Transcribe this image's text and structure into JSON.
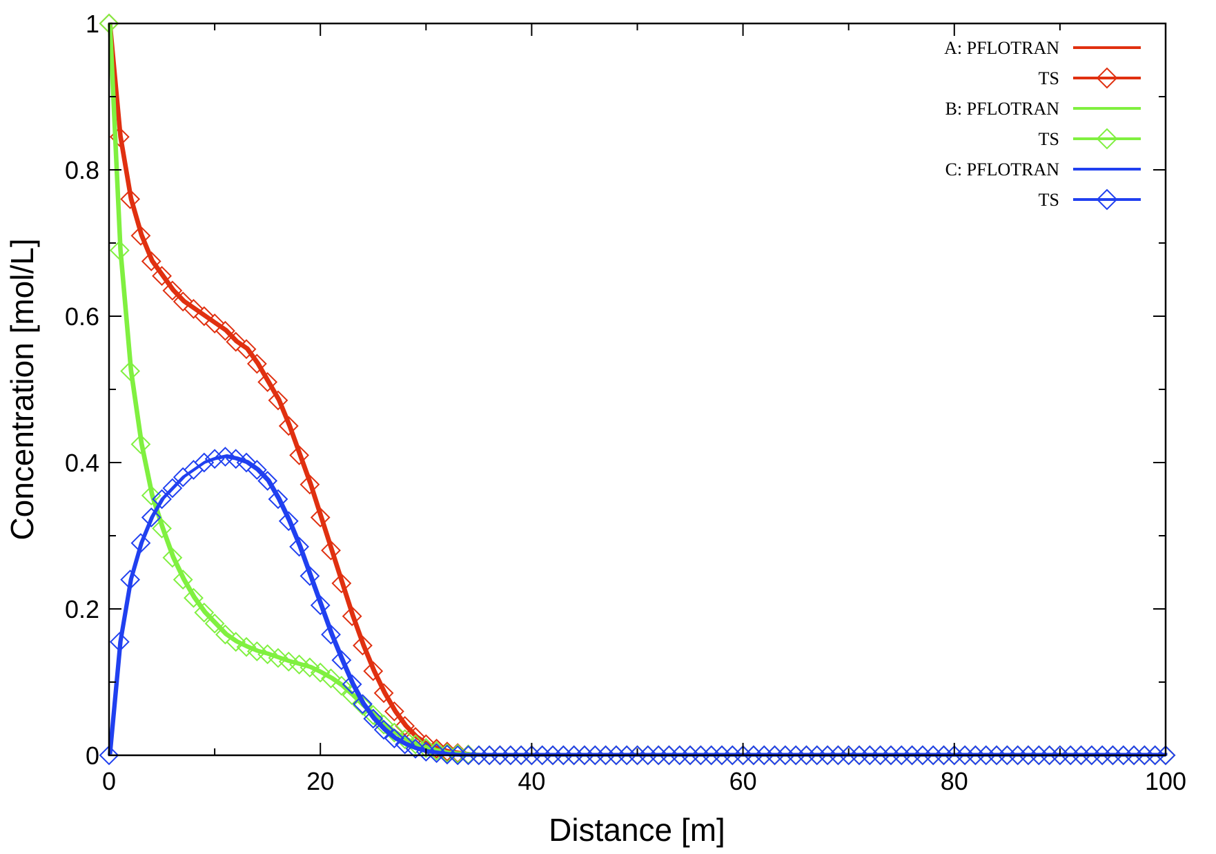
{
  "chart_data": {
    "type": "line",
    "title": "",
    "xlabel": "Distance [m]",
    "ylabel": "Concentration [mol/L]",
    "xlim": [
      0,
      100
    ],
    "ylim": [
      0,
      1
    ],
    "xticks": [
      0,
      20,
      40,
      60,
      80,
      100
    ],
    "xtick_labels": [
      "0",
      "20",
      "40",
      "60",
      "80",
      "100"
    ],
    "yticks": [
      0,
      0.2,
      0.4,
      0.6,
      0.8,
      1
    ],
    "ytick_labels": [
      "0",
      "0.2",
      "0.4",
      "0.6",
      "0.8",
      "1"
    ],
    "grid": false,
    "legend_position": "top-right",
    "x": [
      0,
      1,
      2,
      3,
      4,
      5,
      6,
      7,
      8,
      9,
      10,
      11,
      12,
      13,
      14,
      15,
      16,
      17,
      18,
      19,
      20,
      21,
      22,
      23,
      24,
      25,
      26,
      27,
      28,
      29,
      30,
      31,
      32,
      33,
      34,
      35
    ],
    "x_tail_end": 100,
    "series": [
      {
        "name": "A: PFLOTRAN",
        "color": "#e03010",
        "marker": "none",
        "values": [
          1,
          0.845,
          0.76,
          0.71,
          0.675,
          0.655,
          0.635,
          0.62,
          0.61,
          0.6,
          0.59,
          0.58,
          0.565,
          0.555,
          0.535,
          0.51,
          0.485,
          0.45,
          0.41,
          0.37,
          0.325,
          0.28,
          0.235,
          0.19,
          0.15,
          0.115,
          0.085,
          0.06,
          0.04,
          0.025,
          0.015,
          0.009,
          0.005,
          0.003,
          0.001,
          0
        ]
      },
      {
        "name": "TS",
        "color": "#e03010",
        "marker": "diamond",
        "values": [
          1,
          0.845,
          0.76,
          0.71,
          0.675,
          0.655,
          0.635,
          0.62,
          0.61,
          0.6,
          0.59,
          0.58,
          0.565,
          0.555,
          0.535,
          0.51,
          0.485,
          0.45,
          0.41,
          0.37,
          0.325,
          0.28,
          0.235,
          0.19,
          0.15,
          0.115,
          0.085,
          0.06,
          0.04,
          0.025,
          0.015,
          0.009,
          0.005,
          0.003,
          0.001,
          0
        ]
      },
      {
        "name": "B: PFLOTRAN",
        "color": "#80f040",
        "marker": "none",
        "values": [
          1,
          0.69,
          0.525,
          0.425,
          0.355,
          0.31,
          0.27,
          0.24,
          0.215,
          0.195,
          0.18,
          0.165,
          0.155,
          0.148,
          0.142,
          0.138,
          0.133,
          0.128,
          0.124,
          0.12,
          0.113,
          0.105,
          0.095,
          0.082,
          0.068,
          0.055,
          0.042,
          0.031,
          0.022,
          0.015,
          0.01,
          0.006,
          0.003,
          0.002,
          0.001,
          0
        ]
      },
      {
        "name": "TS",
        "color": "#80f040",
        "marker": "diamond",
        "values": [
          1,
          0.69,
          0.525,
          0.425,
          0.355,
          0.31,
          0.27,
          0.24,
          0.215,
          0.195,
          0.18,
          0.165,
          0.155,
          0.148,
          0.142,
          0.138,
          0.133,
          0.128,
          0.124,
          0.12,
          0.113,
          0.105,
          0.095,
          0.082,
          0.068,
          0.055,
          0.042,
          0.031,
          0.022,
          0.015,
          0.01,
          0.006,
          0.003,
          0.002,
          0.001,
          0
        ]
      },
      {
        "name": "C: PFLOTRAN",
        "color": "#2040f0",
        "marker": "none",
        "values": [
          0,
          0.155,
          0.24,
          0.29,
          0.325,
          0.35,
          0.365,
          0.38,
          0.39,
          0.4,
          0.405,
          0.408,
          0.405,
          0.4,
          0.39,
          0.375,
          0.35,
          0.32,
          0.285,
          0.245,
          0.205,
          0.165,
          0.13,
          0.097,
          0.07,
          0.05,
          0.035,
          0.023,
          0.015,
          0.009,
          0.005,
          0.003,
          0.001,
          0,
          0,
          0
        ]
      },
      {
        "name": "TS",
        "color": "#2040f0",
        "marker": "diamond",
        "values": [
          0,
          0.155,
          0.24,
          0.29,
          0.325,
          0.35,
          0.365,
          0.38,
          0.39,
          0.4,
          0.405,
          0.408,
          0.405,
          0.4,
          0.39,
          0.375,
          0.35,
          0.32,
          0.285,
          0.245,
          0.205,
          0.165,
          0.13,
          0.097,
          0.07,
          0.05,
          0.035,
          0.023,
          0.015,
          0.009,
          0.005,
          0.003,
          0.001,
          0,
          0,
          0
        ]
      }
    ]
  }
}
